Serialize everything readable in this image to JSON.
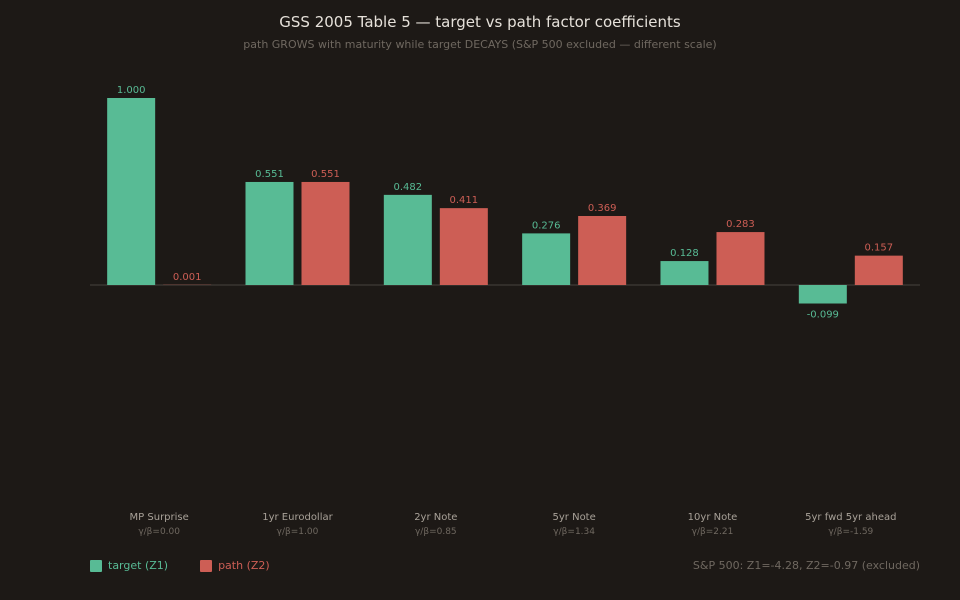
{
  "colors": {
    "background": "#1d1916",
    "target": "#58bb95",
    "path": "#cd5e55",
    "axis": "#3a3530",
    "category_label": "#a8a198",
    "ratio_label": "#6f6860"
  },
  "legend": {
    "target_label": "target (Z1)",
    "path_label": "path (Z2)"
  },
  "footnote": "S&P 500: Z1=-4.28, Z2=-0.97 (excluded)",
  "chart_data": {
    "type": "bar",
    "title": "GSS 2005 Table 5 — target vs path factor coefficients",
    "subtitle": "path GROWS with maturity while target DECAYS (S&P 500 excluded — different scale)",
    "categories": [
      "MP Surprise",
      "1yr Eurodollar",
      "2yr Note",
      "5yr Note",
      "10yr Note",
      "5yr fwd 5yr ahead"
    ],
    "category_sublabels": [
      "γ/β=0.00",
      "γ/β=1.00",
      "γ/β=0.85",
      "γ/β=1.34",
      "γ/β=2.21",
      "γ/β=-1.59"
    ],
    "series": [
      {
        "name": "target (Z1)",
        "values": [
          1.0,
          0.551,
          0.482,
          0.276,
          0.128,
          -0.099
        ],
        "labels": [
          "1.000",
          "0.551",
          "0.482",
          "0.276",
          "0.128",
          "-0.099"
        ]
      },
      {
        "name": "path (Z2)",
        "values": [
          0.001,
          0.551,
          0.411,
          0.369,
          0.283,
          0.157
        ],
        "labels": [
          "0.001",
          "0.551",
          "0.411",
          "0.369",
          "0.283",
          "0.157"
        ]
      }
    ],
    "ylim": [
      -1.15,
      1.0
    ],
    "grid": false,
    "legend_position": "bottom-left"
  }
}
